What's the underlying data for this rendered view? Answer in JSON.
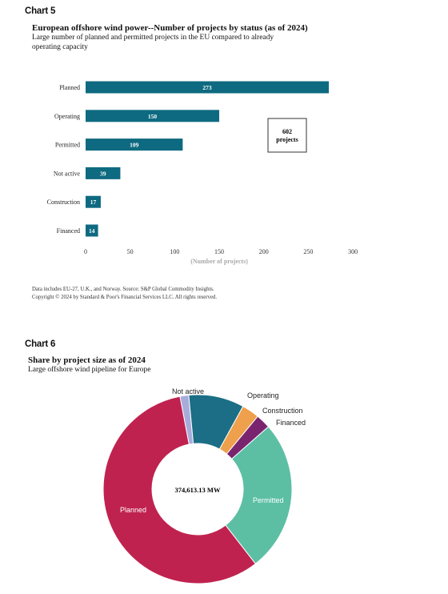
{
  "chart5": {
    "label": "Chart 5",
    "title": "European offshore wind power--Number of projects by status (as of 2024)",
    "subtitle_line1": "Large number of planned and permitted projects in the EU compared to already",
    "subtitle_line2": "operating capacity",
    "callout_value": "602",
    "callout_unit": "projects",
    "footnote_line1": "Data includes EU-27, U.K., and Norway. Source: S&P Global Commodity Insights.",
    "footnote_line2": "Copyright © 2024 by Standard & Poor's Financial Services LLC. All rights reserved."
  },
  "chart6": {
    "label": "Chart 6",
    "title": "Share by project size as of 2024",
    "subtitle": "Large offshore wind pipeline for Europe",
    "center_label": "374,613.13 MW"
  },
  "colors": {
    "bar": "#0e6a80",
    "planned": "#c0224f",
    "not_active": "#a7acdb",
    "operating": "#1b6e85",
    "construction": "#eea04c",
    "financed": "#7a2470",
    "permitted": "#5cbfa4"
  },
  "chart_data": [
    {
      "type": "bar",
      "orientation": "horizontal",
      "categories": [
        "Planned",
        "Operating",
        "Permitted",
        "Not active",
        "Construction",
        "Financed"
      ],
      "values": [
        273,
        150,
        109,
        39,
        17,
        14
      ],
      "xlabel": "(Number of projects)",
      "xlim": [
        0,
        300
      ],
      "xticks": [
        0,
        50,
        100,
        150,
        200,
        250,
        300
      ],
      "grid": false
    },
    {
      "type": "pie",
      "style": "donut",
      "center_label": "374,613.13 MW",
      "categories": [
        "Not active",
        "Operating",
        "Construction",
        "Financed",
        "Permitted",
        "Planned"
      ],
      "values": [
        1.5,
        9.5,
        3.0,
        2.5,
        26.0,
        57.5
      ],
      "value_unit": "percent (estimated)"
    }
  ]
}
